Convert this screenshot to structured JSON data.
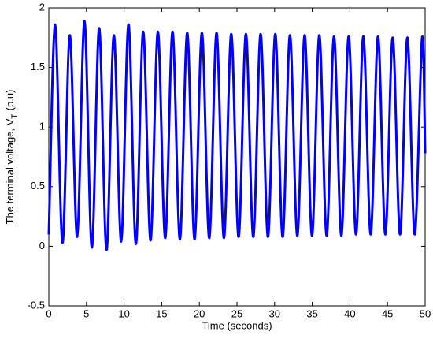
{
  "chart_data": {
    "type": "line",
    "xlabel": "Time  (seconds)",
    "ylabel": {
      "main": "The terminal voltage, V",
      "sub": "T",
      "tail": " (p.u)"
    },
    "x": [
      0,
      0.84,
      1.815,
      2.79,
      3.765,
      4.74,
      5.715,
      6.69,
      7.665,
      8.64,
      9.615,
      10.59,
      11.565,
      12.54,
      13.515,
      14.49,
      15.465,
      16.44,
      17.415,
      18.39,
      19.365,
      20.34,
      21.315,
      22.29,
      23.265,
      24.24,
      25.215,
      26.19,
      27.165,
      28.14,
      29.115,
      30.09,
      31.065,
      32.04,
      33.015,
      33.99,
      34.965,
      35.94,
      36.915,
      37.89,
      38.865,
      39.84,
      40.815,
      41.79,
      42.765,
      43.74,
      44.715,
      45.69,
      46.665,
      47.64,
      48.615,
      49.59,
      50
    ],
    "series": [
      {
        "color": "#0000ff",
        "values": [
          0.1,
          1.86,
          0.03,
          1.77,
          0.08,
          1.89,
          -0.01,
          1.83,
          -0.03,
          1.77,
          0.04,
          1.86,
          0.02,
          1.8,
          0.05,
          1.8,
          0.07,
          1.8,
          0.06,
          1.79,
          0.06,
          1.79,
          0.07,
          1.79,
          0.07,
          1.78,
          0.08,
          1.78,
          0.08,
          1.78,
          0.08,
          1.78,
          0.08,
          1.77,
          0.09,
          1.77,
          0.09,
          1.77,
          0.09,
          1.76,
          0.09,
          1.76,
          0.1,
          1.76,
          0.1,
          1.76,
          0.1,
          1.75,
          0.1,
          1.75,
          0.1,
          1.75,
          0.78
        ]
      }
    ],
    "xlim": [
      0,
      50
    ],
    "xticks": [
      0,
      5,
      10,
      15,
      20,
      25,
      30,
      35,
      40,
      45,
      50
    ],
    "ylim": [
      -0.5,
      2
    ],
    "yticks": [
      -0.5,
      0,
      0.5,
      1,
      1.5,
      2
    ],
    "grid": false
  }
}
